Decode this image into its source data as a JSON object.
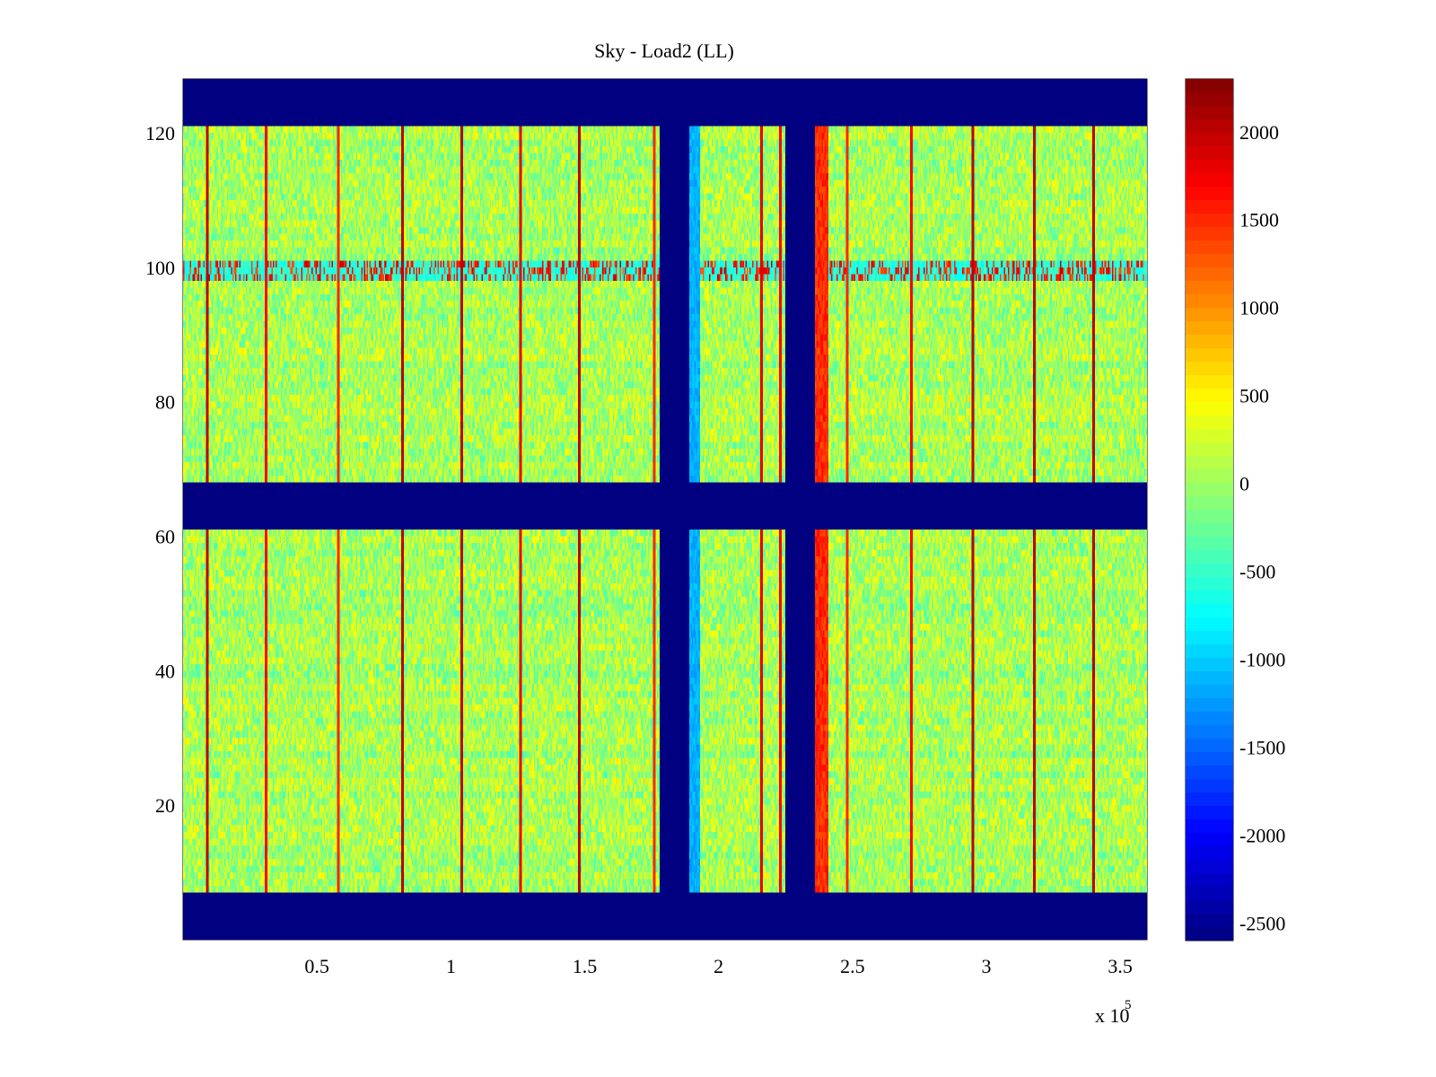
{
  "chart_data": {
    "type": "heatmap",
    "title": "Sky - Load2 (LL)",
    "xlabel": "",
    "ylabel": "",
    "x_multiplier": "x 10",
    "x_multiplier_exponent": "5",
    "xlim": [
      0,
      360000
    ],
    "ylim": [
      0,
      128
    ],
    "x_ticks": [
      {
        "value": 50000,
        "label": "0.5"
      },
      {
        "value": 100000,
        "label": "1"
      },
      {
        "value": 150000,
        "label": "1.5"
      },
      {
        "value": 200000,
        "label": "2"
      },
      {
        "value": 250000,
        "label": "2.5"
      },
      {
        "value": 300000,
        "label": "3"
      },
      {
        "value": 350000,
        "label": "3.5"
      }
    ],
    "y_ticks": [
      {
        "value": 20,
        "label": "20"
      },
      {
        "value": 40,
        "label": "40"
      },
      {
        "value": 60,
        "label": "60"
      },
      {
        "value": 80,
        "label": "80"
      },
      {
        "value": 100,
        "label": "100"
      },
      {
        "value": 120,
        "label": "120"
      }
    ],
    "colorbar": {
      "colormap": "jet",
      "clim": [
        -2600,
        2300
      ],
      "ticks": [
        {
          "value": 2000,
          "label": "2000"
        },
        {
          "value": 1500,
          "label": "1500"
        },
        {
          "value": 1000,
          "label": "1000"
        },
        {
          "value": 500,
          "label": "500"
        },
        {
          "value": 0,
          "label": "0"
        },
        {
          "value": -500,
          "label": "-500"
        },
        {
          "value": -1000,
          "label": "-1000"
        },
        {
          "value": -1500,
          "label": "-1500"
        },
        {
          "value": -2000,
          "label": "-2000"
        },
        {
          "value": -2500,
          "label": "-2500"
        }
      ]
    },
    "field": {
      "background_value": 50,
      "noise_amplitude": 450,
      "masked_value": -2600,
      "masked_rows": [
        [
          0,
          7
        ],
        [
          61,
          68
        ],
        [
          121,
          128
        ]
      ],
      "masked_columns": [
        [
          178000,
          189000
        ],
        [
          225000,
          236000
        ]
      ],
      "column_spikes": [
        {
          "x": 9000,
          "value": 2000
        },
        {
          "x": 31000,
          "value": 1700
        },
        {
          "x": 58000,
          "value": 1500
        },
        {
          "x": 82000,
          "value": 2000
        },
        {
          "x": 104000,
          "value": 2000
        },
        {
          "x": 126000,
          "value": 1800
        },
        {
          "x": 148000,
          "value": 2000
        },
        {
          "x": 176000,
          "value": 1500
        },
        {
          "x": 216000,
          "value": 1800
        },
        {
          "x": 223000,
          "value": 1700
        },
        {
          "x": 248000,
          "value": 1500
        },
        {
          "x": 272000,
          "value": 1700
        },
        {
          "x": 295000,
          "value": 2000
        },
        {
          "x": 318000,
          "value": 2000
        },
        {
          "x": 340000,
          "value": 2000
        }
      ],
      "row_band": {
        "rows": [
          98,
          101
        ],
        "low_value": -800,
        "high_value": 2000
      },
      "edge_features": [
        {
          "x_range": [
            189000,
            193000
          ],
          "value": -1300
        },
        {
          "x_range": [
            236000,
            241000
          ],
          "value": 1700
        }
      ]
    }
  }
}
